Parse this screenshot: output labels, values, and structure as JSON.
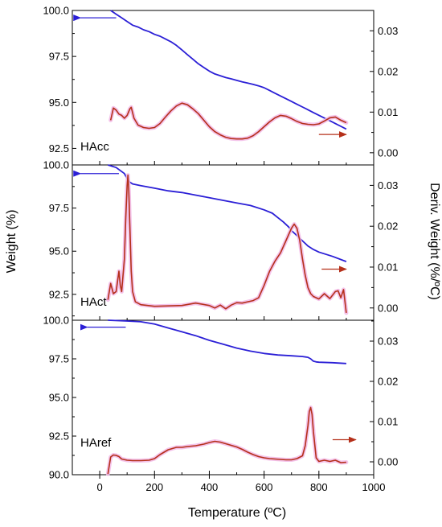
{
  "chart_data": {
    "type": "line",
    "xlabel": "Temperature (ºC)",
    "ylabel_left": "Weight (%)",
    "ylabel_right": "Deriv. Weight (%/ºC)",
    "xlim": [
      -100,
      1000
    ],
    "x_ticks": [
      0,
      200,
      400,
      600,
      800,
      1000
    ],
    "colors": {
      "weight": "#2b1fd6",
      "derivative": "#b5301a",
      "derivative_halo": "#f2b8e6"
    },
    "panels": [
      {
        "label": "HAcc",
        "ylim_left": [
          91.6,
          100
        ],
        "ylim_right": [
          -0.003,
          0.035
        ],
        "left_ticks": [
          "100.0",
          "97.5",
          "95.0",
          "92.5"
        ],
        "right_ticks": [
          "0.03",
          "0.02",
          "0.01",
          "0.00"
        ],
        "left_arrow": {
          "x_from": 60,
          "x_to": -70,
          "y": 99.6
        },
        "right_arrow": {
          "x_from": 800,
          "x_to": 900,
          "y": 0.0045
        },
        "series": [
          {
            "name": "Weight",
            "axis": "left",
            "x": [
              40,
              60,
              80,
              100,
              120,
              140,
              160,
              180,
              200,
              220,
              240,
              260,
              280,
              300,
              320,
              340,
              360,
              380,
              400,
              420,
              440,
              460,
              480,
              500,
              520,
              540,
              560,
              580,
              600,
              620,
              640,
              660,
              680,
              700,
              720,
              740,
              760,
              780,
              800,
              820,
              840,
              860,
              880,
              900
            ],
            "values": [
              100.0,
              99.8,
              99.6,
              99.4,
              99.2,
              99.1,
              98.95,
              98.85,
              98.7,
              98.6,
              98.45,
              98.3,
              98.1,
              97.85,
              97.6,
              97.35,
              97.1,
              96.9,
              96.7,
              96.55,
              96.45,
              96.35,
              96.28,
              96.2,
              96.12,
              96.05,
              95.98,
              95.9,
              95.8,
              95.65,
              95.5,
              95.35,
              95.2,
              95.05,
              94.9,
              94.75,
              94.6,
              94.45,
              94.3,
              94.15,
              94.0,
              93.85,
              93.7,
              93.55
            ]
          },
          {
            "name": "Derivative",
            "axis": "right",
            "x": [
              40,
              50,
              60,
              70,
              80,
              90,
              100,
              110,
              115,
              125,
              140,
              160,
              180,
              200,
              220,
              240,
              260,
              280,
              300,
              320,
              340,
              360,
              380,
              400,
              420,
              440,
              460,
              480,
              500,
              520,
              540,
              560,
              580,
              600,
              620,
              640,
              660,
              680,
              700,
              720,
              740,
              760,
              780,
              800,
              820,
              840,
              860,
              880,
              900
            ],
            "values": [
              0.008,
              0.011,
              0.0105,
              0.0095,
              0.0092,
              0.0085,
              0.0092,
              0.0108,
              0.0112,
              0.0085,
              0.0068,
              0.0062,
              0.006,
              0.0062,
              0.0072,
              0.0088,
              0.0103,
              0.0115,
              0.0122,
              0.0118,
              0.0108,
              0.0096,
              0.008,
              0.0064,
              0.0052,
              0.0044,
              0.0038,
              0.0035,
              0.0034,
              0.0034,
              0.0036,
              0.0042,
              0.0052,
              0.0064,
              0.0076,
              0.0086,
              0.0092,
              0.009,
              0.0084,
              0.0077,
              0.0072,
              0.007,
              0.0069,
              0.0071,
              0.0078,
              0.0086,
              0.0088,
              0.008,
              0.0074
            ]
          }
        ]
      },
      {
        "label": "HAct",
        "ylim_left": [
          91.0,
          100
        ],
        "ylim_right": [
          -0.003,
          0.035
        ],
        "left_ticks": [
          "100.0",
          "97.5",
          "95.0",
          "92.5"
        ],
        "right_ticks": [
          "0.03",
          "0.02",
          "0.01",
          "0.00"
        ],
        "left_arrow": {
          "x_from": 70,
          "x_to": -70,
          "y": 99.5
        },
        "right_arrow": {
          "x_from": 810,
          "x_to": 900,
          "y": 0.0095
        },
        "series": [
          {
            "name": "Weight",
            "axis": "left",
            "x": [
              30,
              60,
              90,
              100,
              110,
              120,
              150,
              200,
              250,
              300,
              350,
              400,
              450,
              500,
              550,
              600,
              630,
              650,
              670,
              690,
              700,
              720,
              740,
              760,
              780,
              800,
              850,
              900
            ],
            "values": [
              100.0,
              99.85,
              99.5,
              99.2,
              99.0,
              98.9,
              98.8,
              98.65,
              98.5,
              98.4,
              98.25,
              98.1,
              97.95,
              97.8,
              97.65,
              97.4,
              97.2,
              96.95,
              96.7,
              96.4,
              96.2,
              95.9,
              95.6,
              95.3,
              95.1,
              94.95,
              94.7,
              94.4
            ]
          },
          {
            "name": "Derivative",
            "axis": "right",
            "x": [
              30,
              40,
              50,
              60,
              70,
              75,
              80,
              90,
              95,
              100,
              103,
              106,
              110,
              115,
              120,
              130,
              150,
              200,
              250,
              300,
              350,
              400,
              420,
              440,
              460,
              480,
              500,
              520,
              540,
              560,
              580,
              600,
              620,
              640,
              660,
              680,
              700,
              710,
              720,
              730,
              740,
              750,
              760,
              770,
              780,
              800,
              820,
              840,
              860,
              870,
              880,
              890,
              900
            ],
            "values": [
              0.002,
              0.006,
              0.0035,
              0.004,
              0.009,
              0.0055,
              0.004,
              0.012,
              0.022,
              0.03,
              0.0325,
              0.029,
              0.02,
              0.009,
              0.004,
              0.0015,
              0.0008,
              0.0004,
              0.0005,
              0.0006,
              0.0012,
              0.0006,
              0.0,
              0.0007,
              -0.0002,
              0.0007,
              0.0013,
              0.0012,
              0.0015,
              0.0018,
              0.0025,
              0.0055,
              0.009,
              0.0115,
              0.0135,
              0.0165,
              0.0195,
              0.0205,
              0.0195,
              0.0165,
              0.012,
              0.008,
              0.005,
              0.0035,
              0.0028,
              0.0022,
              0.0035,
              0.0023,
              0.004,
              0.0042,
              0.0025,
              0.0045,
              -0.0012
            ]
          }
        ]
      },
      {
        "label": "HAref",
        "ylim_left": [
          90.0,
          100
        ],
        "ylim_right": [
          -0.0032,
          0.0352
        ],
        "left_ticks": [
          "100.0",
          "97.5",
          "95.0",
          "92.5",
          "90.0"
        ],
        "right_ticks": [
          "0.03",
          "0.02",
          "0.01",
          "0.00"
        ],
        "left_arrow": {
          "x_from": 95,
          "x_to": -45,
          "y": 99.55
        },
        "right_arrow": {
          "x_from": 850,
          "x_to": 935,
          "y": 0.0055
        },
        "series": [
          {
            "name": "Weight",
            "axis": "left",
            "x": [
              30,
              100,
              150,
              200,
              250,
              300,
              350,
              400,
              450,
              500,
              550,
              600,
              650,
              700,
              740,
              760,
              770,
              780,
              790,
              800,
              850,
              900
            ],
            "values": [
              100.0,
              99.95,
              99.9,
              99.75,
              99.5,
              99.25,
              99.0,
              98.7,
              98.45,
              98.2,
              98.0,
              97.85,
              97.75,
              97.7,
              97.65,
              97.6,
              97.5,
              97.35,
              97.3,
              97.28,
              97.25,
              97.2
            ]
          },
          {
            "name": "Derivative",
            "axis": "right",
            "x": [
              30,
              40,
              50,
              60,
              70,
              80,
              100,
              120,
              150,
              180,
              200,
              220,
              250,
              280,
              300,
              320,
              350,
              380,
              400,
              420,
              440,
              460,
              480,
              500,
              520,
              540,
              560,
              580,
              600,
              620,
              640,
              660,
              680,
              700,
              720,
              740,
              750,
              760,
              765,
              770,
              775,
              780,
              790,
              800,
              820,
              840,
              860,
              880,
              900
            ],
            "values": [
              -0.003,
              0.0012,
              0.0017,
              0.0016,
              0.0013,
              0.0007,
              0.0004,
              0.0003,
              0.0003,
              0.0004,
              0.0008,
              0.0018,
              0.003,
              0.0036,
              0.0036,
              0.0038,
              0.004,
              0.0044,
              0.0048,
              0.0051,
              0.0049,
              0.0045,
              0.0041,
              0.0037,
              0.0031,
              0.0024,
              0.0018,
              0.0013,
              0.001,
              0.0008,
              0.0007,
              0.0006,
              0.0005,
              0.0005,
              0.0008,
              0.0015,
              0.004,
              0.009,
              0.0125,
              0.0135,
              0.0118,
              0.0075,
              0.001,
              0.0001,
              0.0004,
              0.0001,
              0.0004,
              -0.0002,
              -0.0001
            ]
          }
        ]
      }
    ]
  }
}
